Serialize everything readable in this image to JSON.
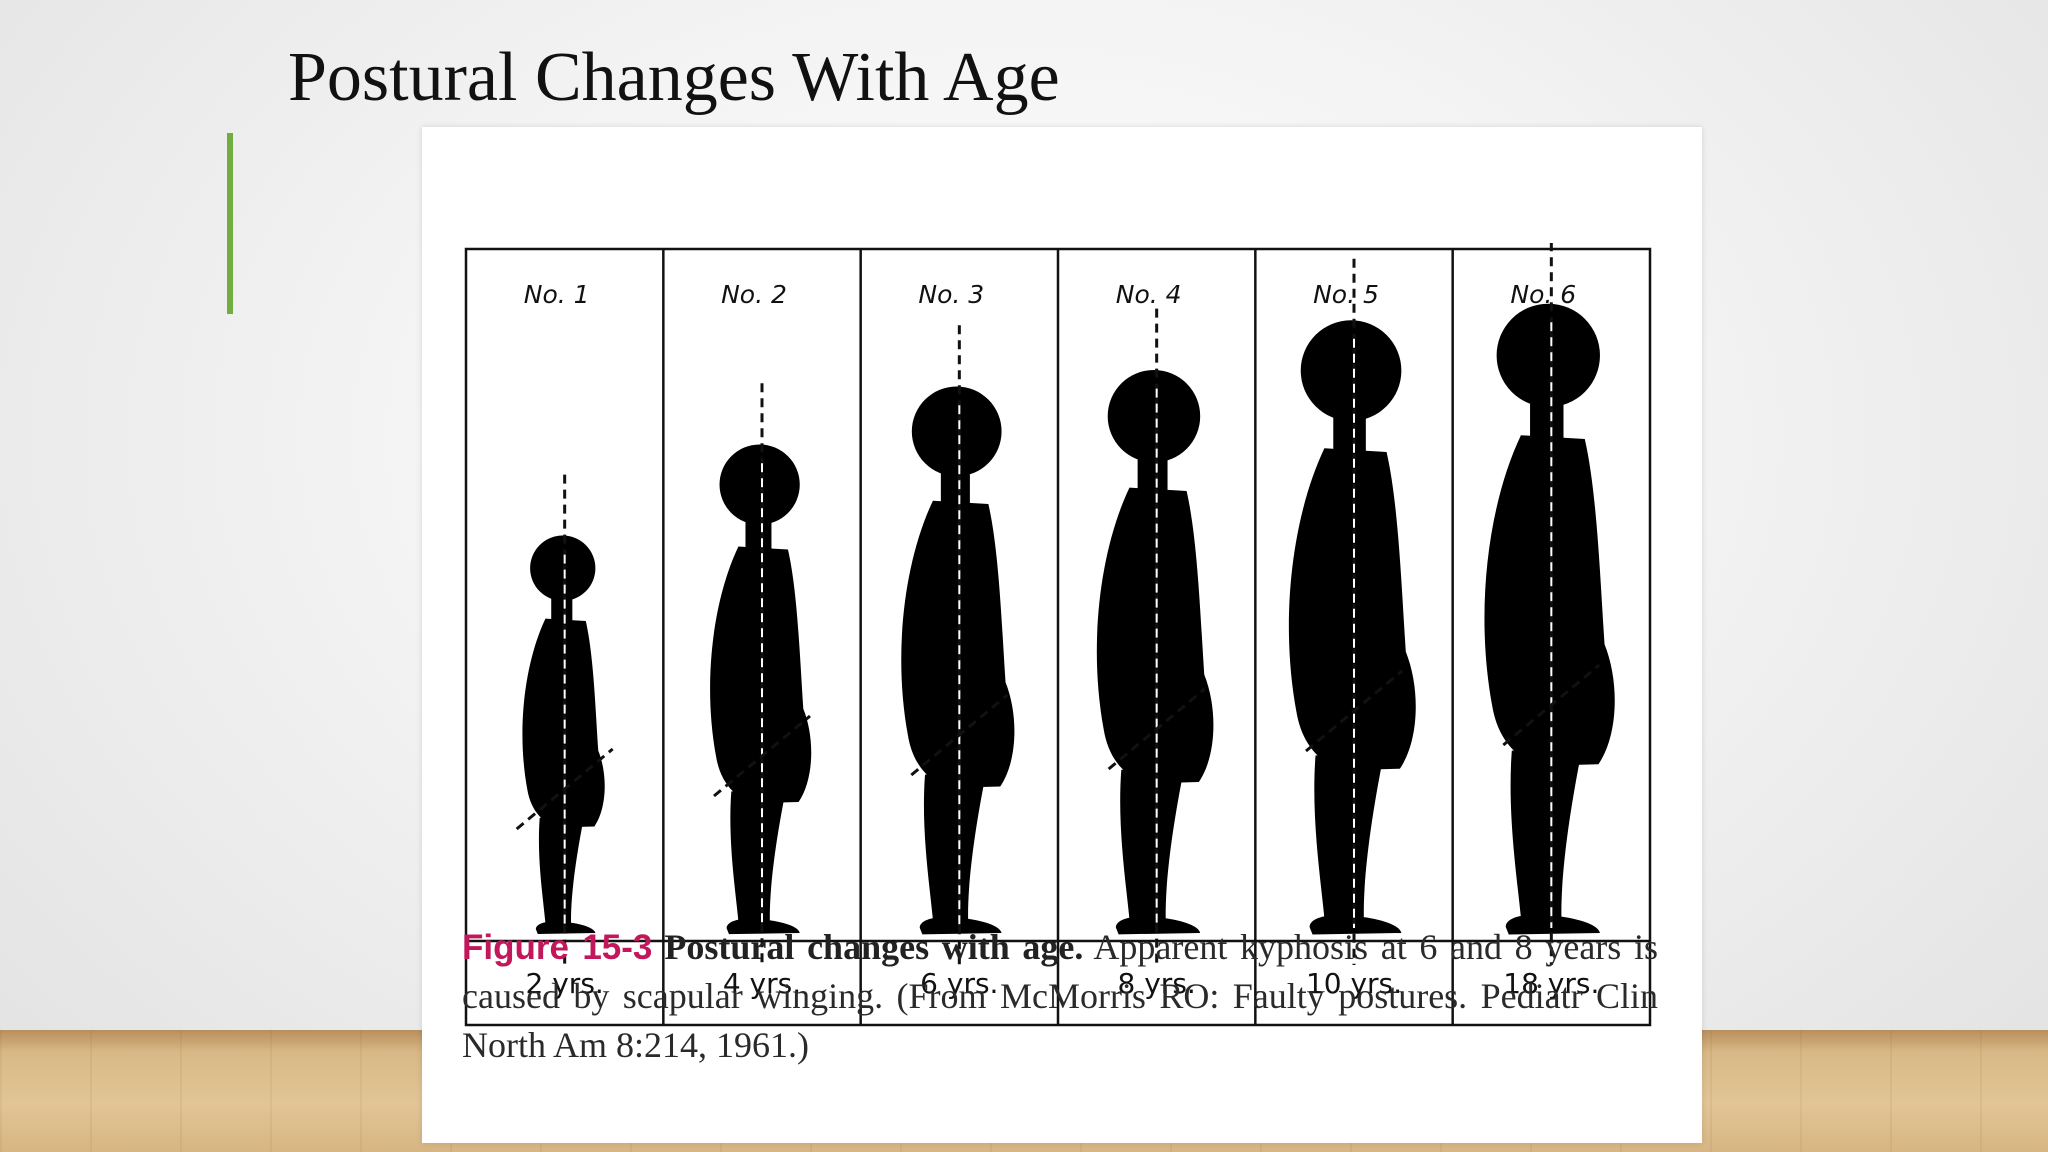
{
  "slide": {
    "title": "Postural Changes With Age"
  },
  "figure": {
    "panels": [
      {
        "number_label": "No. 1",
        "age_label": "2 yrs.",
        "scale": 0.48
      },
      {
        "number_label": "No. 2",
        "age_label": "4 yrs.",
        "scale": 0.59
      },
      {
        "number_label": "No. 3",
        "age_label": "6 yrs.",
        "scale": 0.66
      },
      {
        "number_label": "No. 4",
        "age_label": "8 yrs.",
        "scale": 0.68
      },
      {
        "number_label": "No. 5",
        "age_label": "10 yrs.",
        "scale": 0.74
      },
      {
        "number_label": "No. 6",
        "age_label": "18 yrs.",
        "scale": 0.76
      }
    ],
    "caption": {
      "figure_number": "Figure 15-3",
      "title": "Postural changes with age.",
      "text": "Apparent kyphosis at 6 and 8 years is caused by scapular winging. (From McMorris RO: Faulty postures. Pediatr Clin North Am 8:214, 1961.)"
    }
  },
  "colors": {
    "accent_bar": "#6fae3f",
    "figure_number": "#c2185b",
    "silhouette": "#000000"
  }
}
